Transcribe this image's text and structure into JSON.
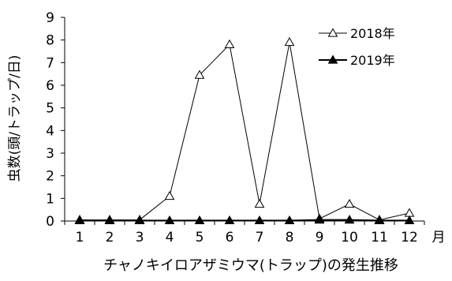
{
  "chart_data": {
    "type": "line",
    "title": "",
    "xlabel": "チャノキイロアザミウマ(トラップ)の発生推移",
    "ylabel": "虫数(頭/トラップ/日)",
    "x_unit": "月",
    "categories": [
      "1",
      "2",
      "3",
      "4",
      "5",
      "6",
      "7",
      "8",
      "9",
      "10",
      "11",
      "12"
    ],
    "ylim": [
      0,
      9
    ],
    "yticks": [
      0,
      1,
      2,
      3,
      4,
      5,
      6,
      7,
      8,
      9
    ],
    "grid": false,
    "legend_position": "top-right",
    "series": [
      {
        "name": "2018年",
        "marker": "open-triangle",
        "color": "#000000",
        "values": [
          0.05,
          0.05,
          0.05,
          1.1,
          6.45,
          7.8,
          0.75,
          7.9,
          0.1,
          0.75,
          0.05,
          0.35
        ]
      },
      {
        "name": "2019年",
        "marker": "filled-triangle",
        "color": "#000000",
        "values": [
          0.02,
          0.02,
          0.02,
          0.02,
          0.02,
          0.02,
          0.02,
          0.02,
          0.05,
          0.05,
          0.02,
          0.02
        ]
      }
    ]
  }
}
